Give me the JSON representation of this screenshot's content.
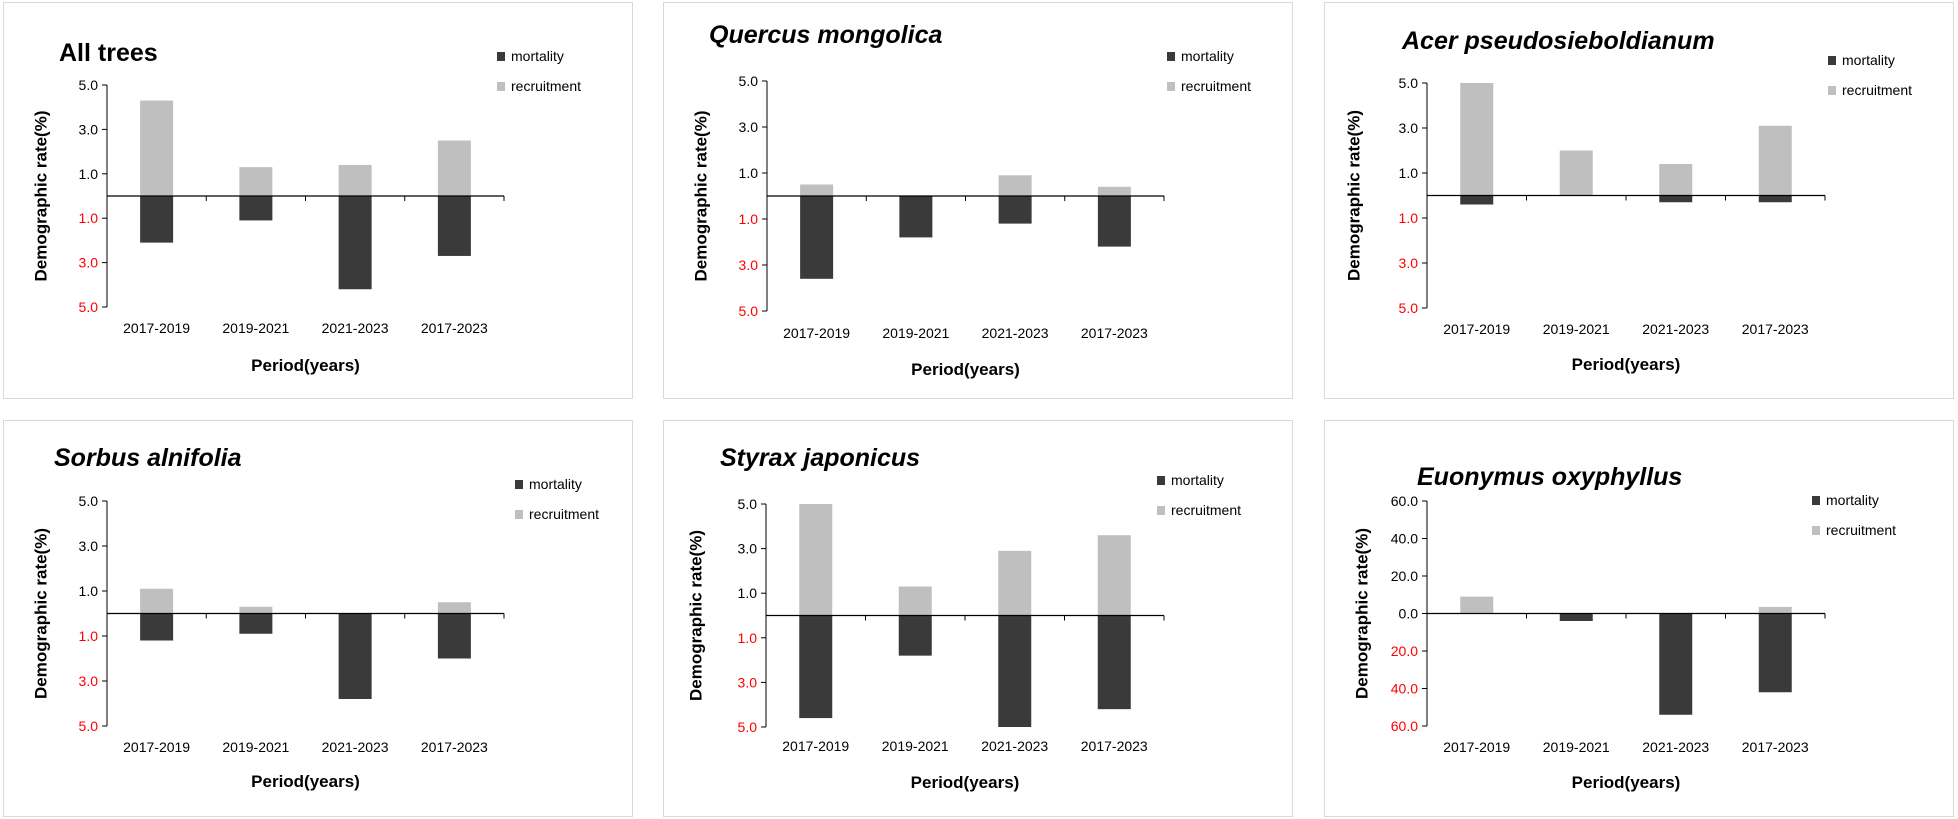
{
  "chart_data": [
    {
      "type": "bar",
      "title": "All trees",
      "title_italic": false,
      "categories": [
        "2017-2019",
        "2019-2021",
        "2021-2023",
        "2017-2023"
      ],
      "series": [
        {
          "name": "mortality",
          "values": [
            -2.1,
            -1.1,
            -4.2,
            -2.7
          ],
          "color": "#3a3a3a"
        },
        {
          "name": "recruitment",
          "values": [
            4.3,
            1.3,
            1.4,
            2.5
          ],
          "color": "#bfbfbf"
        }
      ],
      "yticks": [
        5.0,
        3.0,
        1.0,
        -1.0,
        -3.0,
        -5.0
      ],
      "ytick_labels": [
        "5.0",
        "3.0",
        "1.0",
        "1.0",
        "3.0",
        "5.0"
      ],
      "ylim": [
        -5,
        5
      ],
      "xlabel": "Period(years)",
      "ylabel": "Demographic rate(%)",
      "legend_position": "top-right"
    },
    {
      "type": "bar",
      "title": "Quercus mongolica",
      "title_italic": true,
      "categories": [
        "2017-2019",
        "2019-2021",
        "2021-2023",
        "2017-2023"
      ],
      "series": [
        {
          "name": "mortality",
          "values": [
            -3.6,
            -1.8,
            -1.2,
            -2.2
          ],
          "color": "#3a3a3a"
        },
        {
          "name": "recruitment",
          "values": [
            0.5,
            0.0,
            0.9,
            0.4
          ],
          "color": "#bfbfbf"
        }
      ],
      "yticks": [
        5.0,
        3.0,
        1.0,
        -1.0,
        -3.0,
        -5.0
      ],
      "ytick_labels": [
        "5.0",
        "3.0",
        "1.0",
        "1.0",
        "3.0",
        "5.0"
      ],
      "ylim": [
        -5,
        5
      ],
      "xlabel": "Period(years)",
      "ylabel": "Demographic rate(%)",
      "legend_position": "top-right"
    },
    {
      "type": "bar",
      "title": "Acer pseudosieboldianum",
      "title_italic": true,
      "categories": [
        "2017-2019",
        "2019-2021",
        "2021-2023",
        "2017-2023"
      ],
      "series": [
        {
          "name": "mortality",
          "values": [
            -0.4,
            0.0,
            -0.3,
            -0.3
          ],
          "color": "#3a3a3a"
        },
        {
          "name": "recruitment",
          "values": [
            5.0,
            2.0,
            1.4,
            3.1
          ],
          "color": "#bfbfbf"
        }
      ],
      "yticks": [
        5.0,
        3.0,
        1.0,
        -1.0,
        -3.0,
        -5.0
      ],
      "ytick_labels": [
        "5.0",
        "3.0",
        "1.0",
        "1.0",
        "3.0",
        "5.0"
      ],
      "ylim": [
        -5,
        5
      ],
      "xlabel": "Period(years)",
      "ylabel": "Demographic rate(%)",
      "legend_position": "top-right"
    },
    {
      "type": "bar",
      "title": "Sorbus alnifolia",
      "title_italic": true,
      "categories": [
        "2017-2019",
        "2019-2021",
        "2021-2023",
        "2017-2023"
      ],
      "series": [
        {
          "name": "mortality",
          "values": [
            -1.2,
            -0.9,
            -3.8,
            -2.0
          ],
          "color": "#3a3a3a"
        },
        {
          "name": "recruitment",
          "values": [
            1.1,
            0.3,
            0.0,
            0.5
          ],
          "color": "#bfbfbf"
        }
      ],
      "yticks": [
        5.0,
        3.0,
        1.0,
        -1.0,
        -3.0,
        -5.0
      ],
      "ytick_labels": [
        "5.0",
        "3.0",
        "1.0",
        "1.0",
        "3.0",
        "5.0"
      ],
      "ylim": [
        -5,
        5
      ],
      "xlabel": "Period(years)",
      "ylabel": "Demographic rate(%)",
      "legend_position": "top-right"
    },
    {
      "type": "bar",
      "title": "Styrax japonicus",
      "title_italic": true,
      "categories": [
        "2017-2019",
        "2019-2021",
        "2021-2023",
        "2017-2023"
      ],
      "series": [
        {
          "name": "mortality",
          "values": [
            -4.6,
            -1.8,
            -5.0,
            -4.2
          ],
          "color": "#3a3a3a"
        },
        {
          "name": "recruitment",
          "values": [
            5.0,
            1.3,
            2.9,
            3.6
          ],
          "color": "#bfbfbf"
        }
      ],
      "yticks": [
        5.0,
        3.0,
        1.0,
        -1.0,
        -3.0,
        -5.0
      ],
      "ytick_labels": [
        "5.0",
        "3.0",
        "1.0",
        "1.0",
        "3.0",
        "5.0"
      ],
      "ylim": [
        -5,
        5
      ],
      "xlabel": "Period(years)",
      "ylabel": "Demographic rate(%)",
      "legend_position": "top-right"
    },
    {
      "type": "bar",
      "title": "Euonymus oxyphyllus",
      "title_italic": true,
      "categories": [
        "2017-2019",
        "2019-2021",
        "2021-2023",
        "2017-2023"
      ],
      "series": [
        {
          "name": "mortality",
          "values": [
            0.0,
            -4.0,
            -54.0,
            -42.0
          ],
          "color": "#3a3a3a"
        },
        {
          "name": "recruitment",
          "values": [
            9.0,
            0.0,
            0.0,
            3.5
          ],
          "color": "#bfbfbf"
        }
      ],
      "yticks": [
        60,
        40,
        20,
        0,
        -20,
        -40,
        -60
      ],
      "ytick_labels": [
        "60.0",
        "40.0",
        "20.0",
        "0.0",
        "20.0",
        "40.0",
        "60.0"
      ],
      "ylim": [
        -60,
        60
      ],
      "xlabel": "Period(years)",
      "ylabel": "Demographic rate(%)",
      "legend_position": "top-right"
    }
  ],
  "colors": {
    "positive_tick": "#000000",
    "negative_tick": "#ff0000",
    "mortality": "#3a3a3a",
    "recruitment": "#bfbfbf",
    "axis": "#000000"
  }
}
